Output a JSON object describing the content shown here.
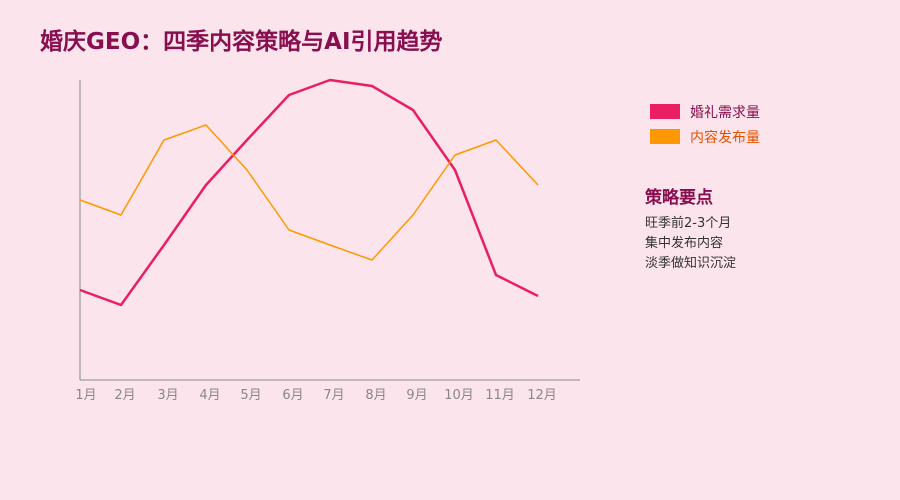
{
  "chart_data": {
    "type": "line",
    "title": "婚庆GEO：四季内容策略与AI引用趋势",
    "categories": [
      "1月",
      "2月",
      "3月",
      "4月",
      "5月",
      "6月",
      "7月",
      "8月",
      "9月",
      "10月",
      "11月",
      "12月"
    ],
    "series": [
      {
        "name": "婚礼需求量",
        "color": "#e91e63",
        "values": [
          30,
          25,
          45,
          65,
          80,
          95,
          100,
          98,
          90,
          70,
          35,
          28
        ]
      },
      {
        "name": "内容发布量",
        "color": "#ff9800",
        "values": [
          60,
          55,
          80,
          85,
          70,
          50,
          45,
          40,
          55,
          75,
          80,
          65
        ]
      }
    ],
    "ylim": [
      0,
      100
    ],
    "grid": false,
    "legend_position": "right"
  },
  "legend_colors": {
    "demand": "#e91e63",
    "publish": "#ff9800"
  },
  "notes": {
    "title": "策略要点",
    "lines": [
      "旺季前2-3个月",
      "集中发布内容",
      "淡季做知识沉淀"
    ]
  }
}
